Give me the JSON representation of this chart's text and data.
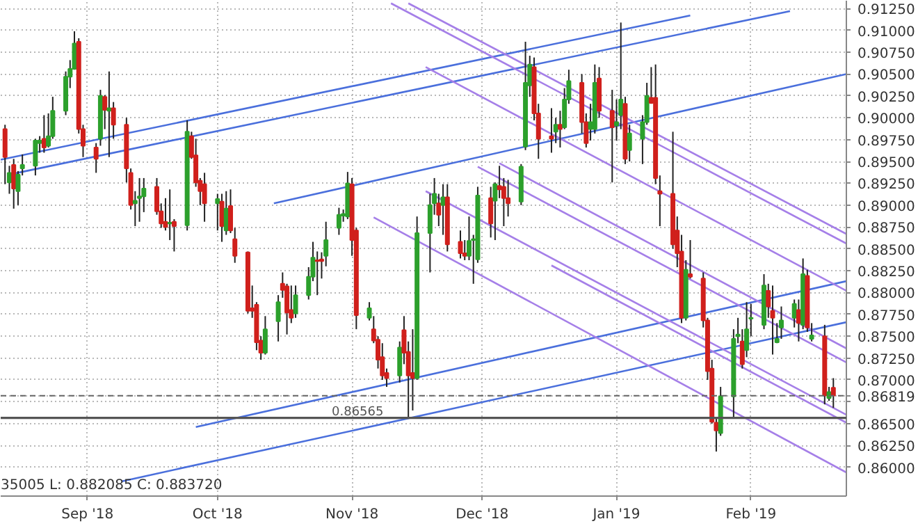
{
  "chart_data": {
    "type": "candlestick",
    "x": [
      "2018-08-13",
      "2018-08-14",
      "2018-08-15",
      "2018-08-16",
      "2018-08-17",
      "2018-08-20",
      "2018-08-21",
      "2018-08-22",
      "2018-08-23",
      "2018-08-24",
      "2018-08-27",
      "2018-08-28",
      "2018-08-29",
      "2018-08-30",
      "2018-08-31",
      "2018-09-03",
      "2018-09-04",
      "2018-09-05",
      "2018-09-06",
      "2018-09-07",
      "2018-09-10",
      "2018-09-11",
      "2018-09-12",
      "2018-09-13",
      "2018-09-14",
      "2018-09-17",
      "2018-09-18",
      "2018-09-19",
      "2018-09-20",
      "2018-09-21",
      "2018-09-24",
      "2018-09-25",
      "2018-09-26",
      "2018-09-27",
      "2018-09-28",
      "2018-10-01",
      "2018-10-02",
      "2018-10-03",
      "2018-10-04",
      "2018-10-05",
      "2018-10-08",
      "2018-10-09",
      "2018-10-10",
      "2018-10-11",
      "2018-10-12",
      "2018-10-15",
      "2018-10-16",
      "2018-10-17",
      "2018-10-18",
      "2018-10-19",
      "2018-10-22",
      "2018-10-23",
      "2018-10-24",
      "2018-10-25",
      "2018-10-26",
      "2018-10-29",
      "2018-10-30",
      "2018-10-31",
      "2018-11-01",
      "2018-11-02",
      "2018-11-05",
      "2018-11-06",
      "2018-11-07",
      "2018-11-08",
      "2018-11-09",
      "2018-11-12",
      "2018-11-13",
      "2018-11-14",
      "2018-11-15",
      "2018-11-16",
      "2018-11-19",
      "2018-11-20",
      "2018-11-21",
      "2018-11-22",
      "2018-11-23",
      "2018-11-26",
      "2018-11-27",
      "2018-11-28",
      "2018-11-29",
      "2018-11-30",
      "2018-12-03",
      "2018-12-04",
      "2018-12-05",
      "2018-12-06",
      "2018-12-07",
      "2018-12-10",
      "2018-12-11",
      "2018-12-12",
      "2018-12-13",
      "2018-12-14",
      "2018-12-17",
      "2018-12-18",
      "2018-12-19",
      "2018-12-20",
      "2018-12-21",
      "2018-12-24",
      "2018-12-25",
      "2018-12-26",
      "2018-12-27",
      "2018-12-28",
      "2018-12-31",
      "2019-01-01",
      "2019-01-02",
      "2019-01-03",
      "2019-01-04",
      "2019-01-07",
      "2019-01-08",
      "2019-01-09",
      "2019-01-10",
      "2019-01-11",
      "2019-01-14",
      "2019-01-15",
      "2019-01-16",
      "2019-01-17",
      "2019-01-18",
      "2019-01-21",
      "2019-01-22",
      "2019-01-23",
      "2019-01-24",
      "2019-01-25",
      "2019-01-28",
      "2019-01-29",
      "2019-01-30",
      "2019-01-31",
      "2019-02-01",
      "2019-02-04",
      "2019-02-05",
      "2019-02-06",
      "2019-02-07",
      "2019-02-08",
      "2019-02-11",
      "2019-02-12",
      "2019-02-13",
      "2019-02-14",
      "2019-02-15",
      "2019-02-18",
      "2019-02-19",
      "2019-02-20"
    ],
    "ohlc": [
      [
        0.8987,
        0.8992,
        0.8924,
        0.8955
      ],
      [
        0.8926,
        0.8945,
        0.8913,
        0.8937
      ],
      [
        0.8946,
        0.8953,
        0.8896,
        0.8919
      ],
      [
        0.8916,
        0.8939,
        0.89,
        0.8935
      ],
      [
        0.8942,
        0.8958,
        0.8934,
        0.8946
      ],
      [
        0.8945,
        0.8976,
        0.8934,
        0.8974
      ],
      [
        0.8971,
        0.8979,
        0.896,
        0.8974
      ],
      [
        0.8976,
        0.9003,
        0.896,
        0.8966
      ],
      [
        0.8968,
        0.9005,
        0.8966,
        0.8979
      ],
      [
        0.8979,
        0.9024,
        0.8976,
        0.9008
      ],
      [
        0.9008,
        0.9053,
        0.9003,
        0.9047
      ],
      [
        0.9047,
        0.9066,
        0.9034,
        0.9056
      ],
      [
        0.9056,
        0.9099,
        0.9055,
        0.9085
      ],
      [
        0.9087,
        0.9091,
        0.8982,
        0.8987
      ],
      [
        0.8987,
        0.8992,
        0.8955,
        0.8968
      ],
      [
        0.8966,
        0.8971,
        0.8937,
        0.8953
      ],
      [
        0.8976,
        0.9032,
        0.8968,
        0.9025
      ],
      [
        0.9024,
        0.9026,
        0.8987,
        0.9009
      ],
      [
        0.9008,
        0.9053,
        0.8955,
        0.9011
      ],
      [
        0.9011,
        0.9018,
        0.8976,
        0.8992
      ],
      [
        0.8992,
        0.9,
        0.8926,
        0.8942
      ],
      [
        0.8937,
        0.8942,
        0.8895,
        0.89
      ],
      [
        0.8902,
        0.8916,
        0.8876,
        0.8905
      ],
      [
        0.8908,
        0.8931,
        0.8881,
        0.891
      ],
      [
        0.891,
        0.8931,
        0.8892,
        0.8919
      ],
      [
        0.8921,
        0.8931,
        0.8889,
        0.8893
      ],
      [
        0.8893,
        0.8902,
        0.8874,
        0.8879
      ],
      [
        0.8881,
        0.8908,
        0.8871,
        0.8875
      ],
      [
        0.8879,
        0.8918,
        0.886,
        0.888
      ],
      [
        0.8881,
        0.8884,
        0.8847,
        0.8876
      ],
      [
        0.8877,
        0.8997,
        0.8871,
        0.8984
      ],
      [
        0.8979,
        0.8984,
        0.8953,
        0.8955
      ],
      [
        0.8957,
        0.8976,
        0.8921,
        0.8926
      ],
      [
        0.8928,
        0.8931,
        0.89,
        0.8916
      ],
      [
        0.8924,
        0.8937,
        0.8881,
        0.8902
      ],
      [
        0.8902,
        0.8913,
        0.8871,
        0.8907
      ],
      [
        0.8904,
        0.8913,
        0.8858,
        0.8876
      ],
      [
        0.8871,
        0.8916,
        0.8866,
        0.8896
      ],
      [
        0.8899,
        0.8918,
        0.8868,
        0.8871
      ],
      [
        0.8861,
        0.8874,
        0.8834,
        0.8842
      ],
      [
        0.8846,
        0.8847,
        0.8776,
        0.8779
      ],
      [
        0.8782,
        0.8808,
        0.8771,
        0.8779
      ],
      [
        0.8786,
        0.8789,
        0.8734,
        0.8743
      ],
      [
        0.8745,
        0.875,
        0.8723,
        0.8731
      ],
      [
        0.8731,
        0.8773,
        0.8729,
        0.8758
      ],
      [
        0.8767,
        0.8797,
        0.8744,
        0.8789
      ],
      [
        0.881,
        0.8823,
        0.8794,
        0.8803
      ],
      [
        0.8807,
        0.881,
        0.8752,
        0.8777
      ],
      [
        0.878,
        0.8808,
        0.8765,
        0.8771
      ],
      [
        0.8776,
        0.8808,
        0.8771,
        0.8797
      ],
      [
        0.8797,
        0.8829,
        0.8792,
        0.8818
      ],
      [
        0.8818,
        0.8858,
        0.8813,
        0.884
      ],
      [
        0.8837,
        0.8847,
        0.8797,
        0.8836
      ],
      [
        0.8838,
        0.8846,
        0.8816,
        0.8836
      ],
      [
        0.8842,
        0.8881,
        0.883,
        0.886
      ],
      [
        0.8874,
        0.8897,
        0.8866,
        0.8889
      ],
      [
        0.8888,
        0.8895,
        0.8881,
        0.889
      ],
      [
        0.8887,
        0.8938,
        0.8884,
        0.8925
      ],
      [
        0.8924,
        0.8931,
        0.8842,
        0.886
      ],
      [
        0.8871,
        0.8874,
        0.8758,
        0.8774
      ],
      [
        0.8771,
        0.8789,
        0.8768,
        0.8782
      ],
      [
        0.8758,
        0.8773,
        0.8742,
        0.8745
      ],
      [
        0.8746,
        0.875,
        0.8713,
        0.8723
      ],
      [
        0.8726,
        0.8742,
        0.87,
        0.8705
      ],
      [
        0.8708,
        0.8713,
        0.8692,
        0.8702
      ],
      [
        0.8705,
        0.8744,
        0.8697,
        0.8737
      ],
      [
        0.8757,
        0.8773,
        0.8718,
        0.8731
      ],
      [
        0.8732,
        0.8744,
        0.8657,
        0.8705
      ],
      [
        0.8708,
        0.8758,
        0.8665,
        0.8702
      ],
      [
        0.8702,
        0.8887,
        0.87,
        0.8868
      ],
      [
        0.8868,
        0.8913,
        0.8823,
        0.89
      ],
      [
        0.8902,
        0.8931,
        0.8889,
        0.8913
      ],
      [
        0.8902,
        0.8913,
        0.8876,
        0.8889
      ],
      [
        0.89,
        0.8924,
        0.8866,
        0.8909
      ],
      [
        0.8909,
        0.8924,
        0.8847,
        0.8855
      ],
      [
        0.8858,
        0.8871,
        0.8839,
        0.8845
      ],
      [
        0.8845,
        0.886,
        0.8837,
        0.8842
      ],
      [
        0.8842,
        0.8887,
        0.8837,
        0.8859
      ],
      [
        0.886,
        0.8866,
        0.881,
        0.8861
      ],
      [
        0.8838,
        0.8921,
        0.8834,
        0.8911
      ],
      [
        0.8908,
        0.8921,
        0.8863,
        0.8879
      ],
      [
        0.8905,
        0.8926,
        0.886,
        0.8924
      ],
      [
        0.8922,
        0.8945,
        0.8908,
        0.8918
      ],
      [
        0.8921,
        0.8931,
        0.8876,
        0.8908
      ],
      [
        0.8908,
        0.8929,
        0.8887,
        0.8902
      ],
      [
        0.8904,
        0.8947,
        0.89,
        0.8944
      ],
      [
        0.8967,
        0.9087,
        0.8963,
        0.904
      ],
      [
        0.9037,
        0.9071,
        0.9024,
        0.9061
      ],
      [
        0.9058,
        0.9069,
        0.8997,
        0.9005
      ],
      [
        0.9005,
        0.9016,
        0.8953,
        0.8976
      ],
      [
        0.8979,
        0.9011,
        0.896,
        0.8976
      ],
      [
        0.8984,
        0.9,
        0.8971,
        0.8992
      ],
      [
        0.8992,
        0.9008,
        0.8966,
        0.8987
      ],
      [
        0.8989,
        0.9034,
        0.8987,
        0.9021
      ],
      [
        0.9021,
        0.9055,
        0.9016,
        0.9042
      ],
      [
        0.904,
        0.905,
        0.8982,
        0.8995
      ],
      [
        0.8995,
        0.9005,
        0.8966,
        0.8971
      ],
      [
        0.8987,
        0.9016,
        0.8974,
        0.8995
      ],
      [
        0.8987,
        0.9061,
        0.8982,
        0.904
      ],
      [
        0.9045,
        0.9058,
        0.9,
        0.9008
      ],
      [
        0.9008,
        0.9032,
        0.8926,
        0.8989
      ],
      [
        0.8991,
        0.9021,
        0.8974,
        0.8995
      ],
      [
        0.9003,
        0.9109,
        0.8987,
        0.9021
      ],
      [
        0.9016,
        0.9024,
        0.8947,
        0.8953
      ],
      [
        0.8963,
        0.8992,
        0.895,
        0.8982
      ],
      [
        0.8976,
        0.9003,
        0.8947,
        0.8995
      ],
      [
        0.8995,
        0.904,
        0.8992,
        0.9025
      ],
      [
        0.9023,
        0.9058,
        0.9016,
        0.9017
      ],
      [
        0.9023,
        0.9061,
        0.8924,
        0.8931
      ],
      [
        0.8916,
        0.8934,
        0.8876,
        0.8913
      ],
      [
        0.8913,
        0.8984,
        0.885,
        0.8855
      ],
      [
        0.8871,
        0.8887,
        0.8829,
        0.8845
      ],
      [
        0.8847,
        0.8866,
        0.8765,
        0.8771
      ],
      [
        0.8771,
        0.8837,
        0.8768,
        0.8826
      ],
      [
        0.8821,
        0.886,
        0.8816,
        0.8818
      ],
      [
        0.8816,
        0.8823,
        0.876,
        0.8768
      ],
      [
        0.8768,
        0.8771,
        0.87,
        0.871
      ],
      [
        0.8713,
        0.8723,
        0.865,
        0.8652
      ],
      [
        0.8651,
        0.8657,
        0.8618,
        0.8642
      ],
      [
        0.8639,
        0.8692,
        0.8636,
        0.8681
      ],
      [
        0.8681,
        0.8758,
        0.8657,
        0.8747
      ],
      [
        0.875,
        0.8771,
        0.8742,
        0.8752
      ],
      [
        0.8744,
        0.8758,
        0.8713,
        0.8718
      ],
      [
        0.8734,
        0.8789,
        0.8726,
        0.8758
      ],
      [
        0.877,
        0.8787,
        0.875,
        0.8771
      ],
      [
        0.8763,
        0.8821,
        0.8758,
        0.8808
      ],
      [
        0.8802,
        0.881,
        0.8771,
        0.8784
      ],
      [
        0.8779,
        0.8808,
        0.8729,
        0.8771
      ],
      [
        0.8743,
        0.8765,
        0.8742,
        0.8747
      ],
      [
        0.876,
        0.8784,
        0.8747,
        0.8768
      ],
      [
        0.8771,
        0.8792,
        0.876,
        0.8787
      ],
      [
        0.878,
        0.8792,
        0.8744,
        0.8765
      ],
      [
        0.8763,
        0.8839,
        0.8758,
        0.8821
      ],
      [
        0.8819,
        0.8826,
        0.8755,
        0.876
      ],
      [
        0.8747,
        0.8765,
        0.8744,
        0.8751
      ],
      [
        0.875,
        0.8763,
        0.8672,
        0.8682
      ],
      [
        0.8679,
        0.8692,
        0.8676,
        0.8686
      ],
      [
        0.8691,
        0.8702,
        0.8668,
        0.8682
      ]
    ],
    "colors": [
      "#d0201c",
      "#2ca02c",
      "#d0201c",
      "#2ca02c",
      "#2ca02c",
      "#2ca02c",
      "#2ca02c",
      "#d0201c",
      "#2ca02c",
      "#2ca02c",
      "#2ca02c",
      "#2ca02c",
      "#2ca02c",
      "#d0201c",
      "#d0201c",
      "#d0201c",
      "#2ca02c",
      "#d0201c",
      "#2ca02c",
      "#d0201c",
      "#d0201c",
      "#d0201c",
      "#2ca02c",
      "#2ca02c",
      "#2ca02c",
      "#d0201c",
      "#d0201c",
      "#d0201c",
      "#2ca02c",
      "#d0201c",
      "#2ca02c",
      "#d0201c",
      "#d0201c",
      "#d0201c",
      "#d0201c",
      "#2ca02c",
      "#d0201c",
      "#2ca02c",
      "#d0201c",
      "#d0201c",
      "#d0201c",
      "#d0201c",
      "#d0201c",
      "#d0201c",
      "#2ca02c",
      "#2ca02c",
      "#d0201c",
      "#d0201c",
      "#d0201c",
      "#2ca02c",
      "#2ca02c",
      "#2ca02c",
      "#d0201c",
      "#d0201c",
      "#2ca02c",
      "#2ca02c",
      "#2ca02c",
      "#2ca02c",
      "#d0201c",
      "#d0201c",
      "#2ca02c",
      "#d0201c",
      "#d0201c",
      "#d0201c",
      "#d0201c",
      "#2ca02c",
      "#d0201c",
      "#d0201c",
      "#d0201c",
      "#2ca02c",
      "#2ca02c",
      "#2ca02c",
      "#d0201c",
      "#2ca02c",
      "#d0201c",
      "#d0201c",
      "#d0201c",
      "#2ca02c",
      "#2ca02c",
      "#2ca02c",
      "#d0201c",
      "#2ca02c",
      "#d0201c",
      "#d0201c",
      "#d0201c",
      "#2ca02c",
      "#2ca02c",
      "#2ca02c",
      "#d0201c",
      "#d0201c",
      "#d0201c",
      "#2ca02c",
      "#d0201c",
      "#2ca02c",
      "#2ca02c",
      "#d0201c",
      "#d0201c",
      "#2ca02c",
      "#2ca02c",
      "#d0201c",
      "#d0201c",
      "#2ca02c",
      "#2ca02c",
      "#d0201c",
      "#2ca02c",
      "#2ca02c",
      "#2ca02c",
      "#d0201c",
      "#d0201c",
      "#d0201c",
      "#d0201c",
      "#d0201c",
      "#d0201c",
      "#2ca02c",
      "#d0201c",
      "#d0201c",
      "#d0201c",
      "#d0201c",
      "#d0201c",
      "#2ca02c",
      "#2ca02c",
      "#2ca02c",
      "#d0201c",
      "#2ca02c",
      "#2ca02c",
      "#2ca02c",
      "#d0201c",
      "#d0201c",
      "#2ca02c",
      "#2ca02c",
      "#2ca02c",
      "#d0201c",
      "#2ca02c",
      "#d0201c",
      "#2ca02c",
      "#d0201c",
      "#2ca02c",
      "#d0201c"
    ],
    "series": [
      {
        "type": "line",
        "color": "#4a6fdc",
        "x": [
          "2018-08-12",
          "2019-01-18"
        ],
        "values": [
          0.8952,
          0.9117
        ]
      },
      {
        "type": "line",
        "color": "#4a6fdc",
        "x": [
          "2018-08-14",
          "2019-02-10"
        ],
        "values": [
          0.8935,
          0.9122
        ]
      },
      {
        "type": "line",
        "color": "#4a6fdc",
        "x": [
          "2018-10-14",
          "2019-02-23"
        ],
        "values": [
          0.8902,
          0.905
        ]
      },
      {
        "type": "line",
        "color": "#4a6fdc",
        "x": [
          "2018-09-26",
          "2019-02-23"
        ],
        "values": [
          0.8646,
          0.8813
        ]
      },
      {
        "type": "line",
        "color": "#4a6fdc",
        "x": [
          "2018-09-09",
          "2019-02-23"
        ],
        "values": [
          0.8584,
          0.8766
        ]
      },
      {
        "type": "line",
        "color": "#a57fe8",
        "x": [
          "2018-11-10",
          "2019-02-23"
        ],
        "values": [
          0.9131,
          0.8856
        ]
      },
      {
        "type": "line",
        "color": "#a57fe8",
        "x": [
          "2018-11-14",
          "2019-02-23"
        ],
        "values": [
          0.9131,
          0.8867
        ]
      },
      {
        "type": "line",
        "color": "#a57fe8",
        "x": [
          "2018-11-18",
          "2019-02-23"
        ],
        "values": [
          0.9058,
          0.8802
        ]
      },
      {
        "type": "line",
        "color": "#a57fe8",
        "x": [
          "2018-11-30",
          "2019-02-23"
        ],
        "values": [
          0.8944,
          0.872
        ]
      },
      {
        "type": "line",
        "color": "#a57fe8",
        "x": [
          "2018-12-05",
          "2019-02-23"
        ],
        "values": [
          0.8948,
          0.8736
        ]
      },
      {
        "type": "line",
        "color": "#a57fe8",
        "x": [
          "2018-11-18",
          "2019-02-23"
        ],
        "values": [
          0.8916,
          0.866
        ]
      },
      {
        "type": "line",
        "color": "#a57fe8",
        "x": [
          "2018-11-06",
          "2019-02-23"
        ],
        "values": [
          0.8886,
          0.8594
        ]
      },
      {
        "type": "line",
        "color": "#a57fe8",
        "x": [
          "2018-12-17",
          "2019-02-23"
        ],
        "values": [
          0.8831,
          0.8651
        ]
      }
    ],
    "ref_lines": [
      {
        "axis": "y",
        "value": 0.86565,
        "label": "0.86565",
        "color": "#555555",
        "line_style": "solid"
      },
      {
        "axis": "y",
        "value": 0.86819,
        "label": "0.86819",
        "color": "#666666",
        "line_style": "dashed"
      }
    ],
    "annotations": [
      "35005 L: 0.882085 C: 0.883720"
    ],
    "xlim": [
      "2018-08-12",
      "2019-02-23"
    ],
    "ylim": [
      0.8567,
      0.9134
    ],
    "xticks": [
      {
        "value": "2018-09-01",
        "label": "Sep '18"
      },
      {
        "value": "2018-10-01",
        "label": "Oct '18"
      },
      {
        "value": "2018-11-01",
        "label": "Nov '18"
      },
      {
        "value": "2018-12-01",
        "label": "Dec '18"
      },
      {
        "value": "2019-01-01",
        "label": "Jan '19"
      },
      {
        "value": "2019-02-01",
        "label": "Feb '19"
      }
    ],
    "yticks": [
      {
        "value": 0.86,
        "label": "0.86000"
      },
      {
        "value": 0.8625,
        "label": "0.86250"
      },
      {
        "value": 0.865,
        "label": "0.86500"
      },
      {
        "value": 0.8675,
        "label": null
      },
      {
        "value": 0.87,
        "label": "0.87000"
      },
      {
        "value": 0.8725,
        "label": "0.87250"
      },
      {
        "value": 0.875,
        "label": "0.87500"
      },
      {
        "value": 0.8775,
        "label": "0.87750"
      },
      {
        "value": 0.88,
        "label": "0.88000"
      },
      {
        "value": 0.8825,
        "label": "0.88250"
      },
      {
        "value": 0.885,
        "label": "0.88500"
      },
      {
        "value": 0.8875,
        "label": "0.88750"
      },
      {
        "value": 0.89,
        "label": "0.89000"
      },
      {
        "value": 0.8925,
        "label": "0.89250"
      },
      {
        "value": 0.895,
        "label": "0.89500"
      },
      {
        "value": 0.8975,
        "label": "0.89750"
      },
      {
        "value": 0.9,
        "label": "0.90000"
      },
      {
        "value": 0.9025,
        "label": "0.90250"
      },
      {
        "value": 0.905,
        "label": "0.90500"
      },
      {
        "value": 0.9075,
        "label": "0.90750"
      },
      {
        "value": 0.91,
        "label": "0.91000"
      },
      {
        "value": 0.9125,
        "label": "0.91250"
      }
    ],
    "grid": true
  }
}
